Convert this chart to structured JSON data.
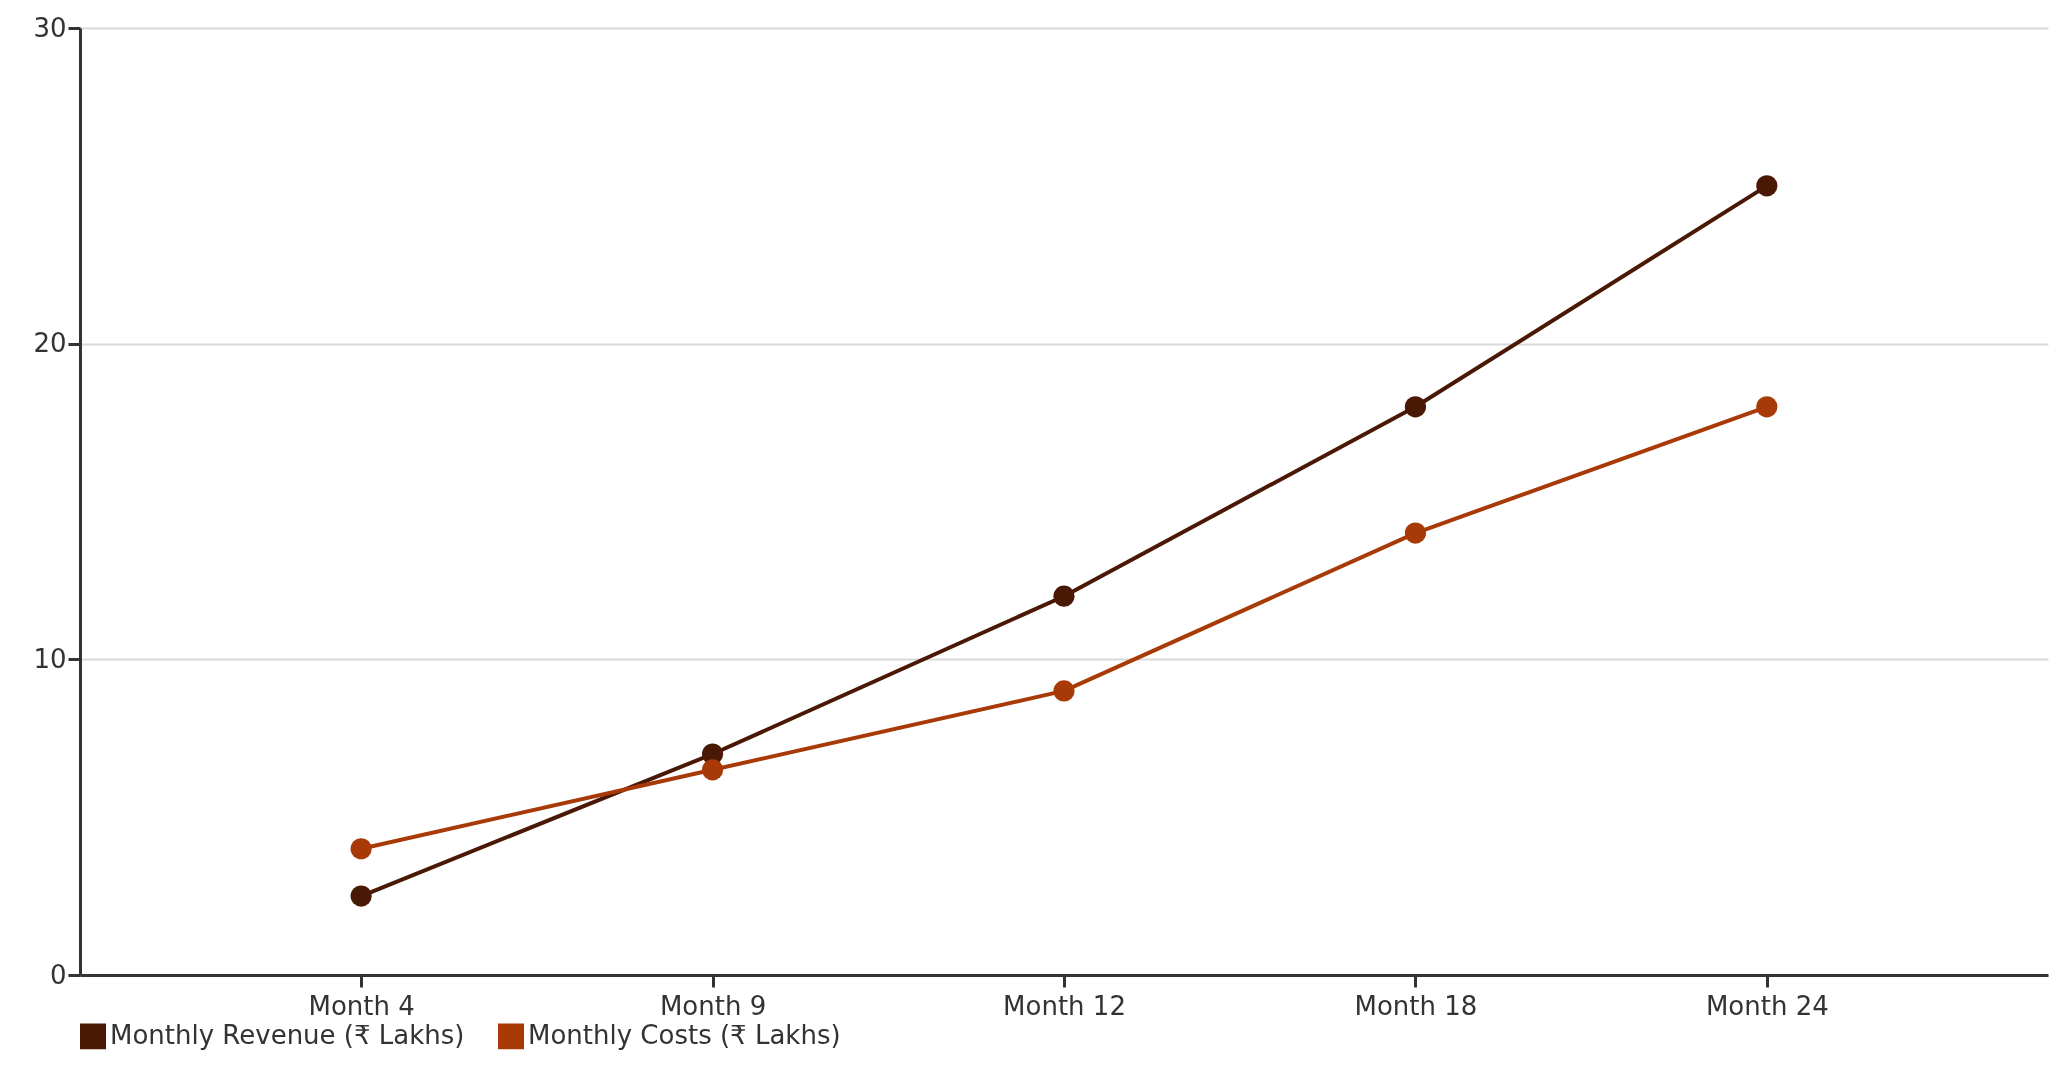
{
  "chart_data": {
    "type": "line",
    "categories": [
      "Month 4",
      "Month 9",
      "Month 12",
      "Month 18",
      "Month 24"
    ],
    "series": [
      {
        "name": "Monthly Revenue (₹ Lakhs)",
        "color": "#4a1905",
        "values": [
          2.5,
          7,
          12,
          18,
          25
        ]
      },
      {
        "name": "Monthly Costs (₹ Lakhs)",
        "color": "#a83a08",
        "values": [
          4,
          6.5,
          9,
          14,
          18
        ]
      }
    ],
    "ylim": [
      0,
      30
    ],
    "yticks": [
      0,
      10,
      20,
      30
    ],
    "grid": "y",
    "legend": "bottom",
    "marker": "circle",
    "line_style": "solid"
  }
}
